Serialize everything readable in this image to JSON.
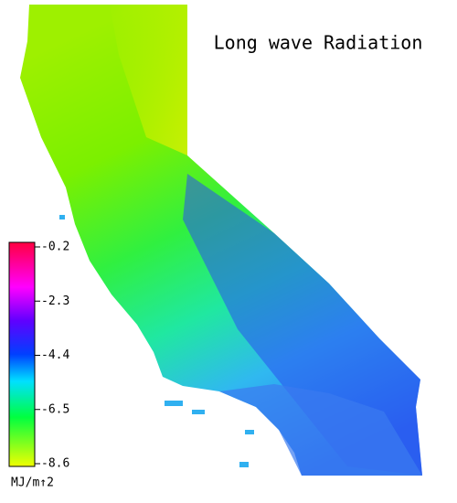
{
  "title": "Long wave Radiation",
  "colorbar": {
    "ticks": [
      -0.2,
      -2.3,
      -4.4,
      -6.5,
      -8.6
    ],
    "unit": "MJ/m↑2"
  }
}
